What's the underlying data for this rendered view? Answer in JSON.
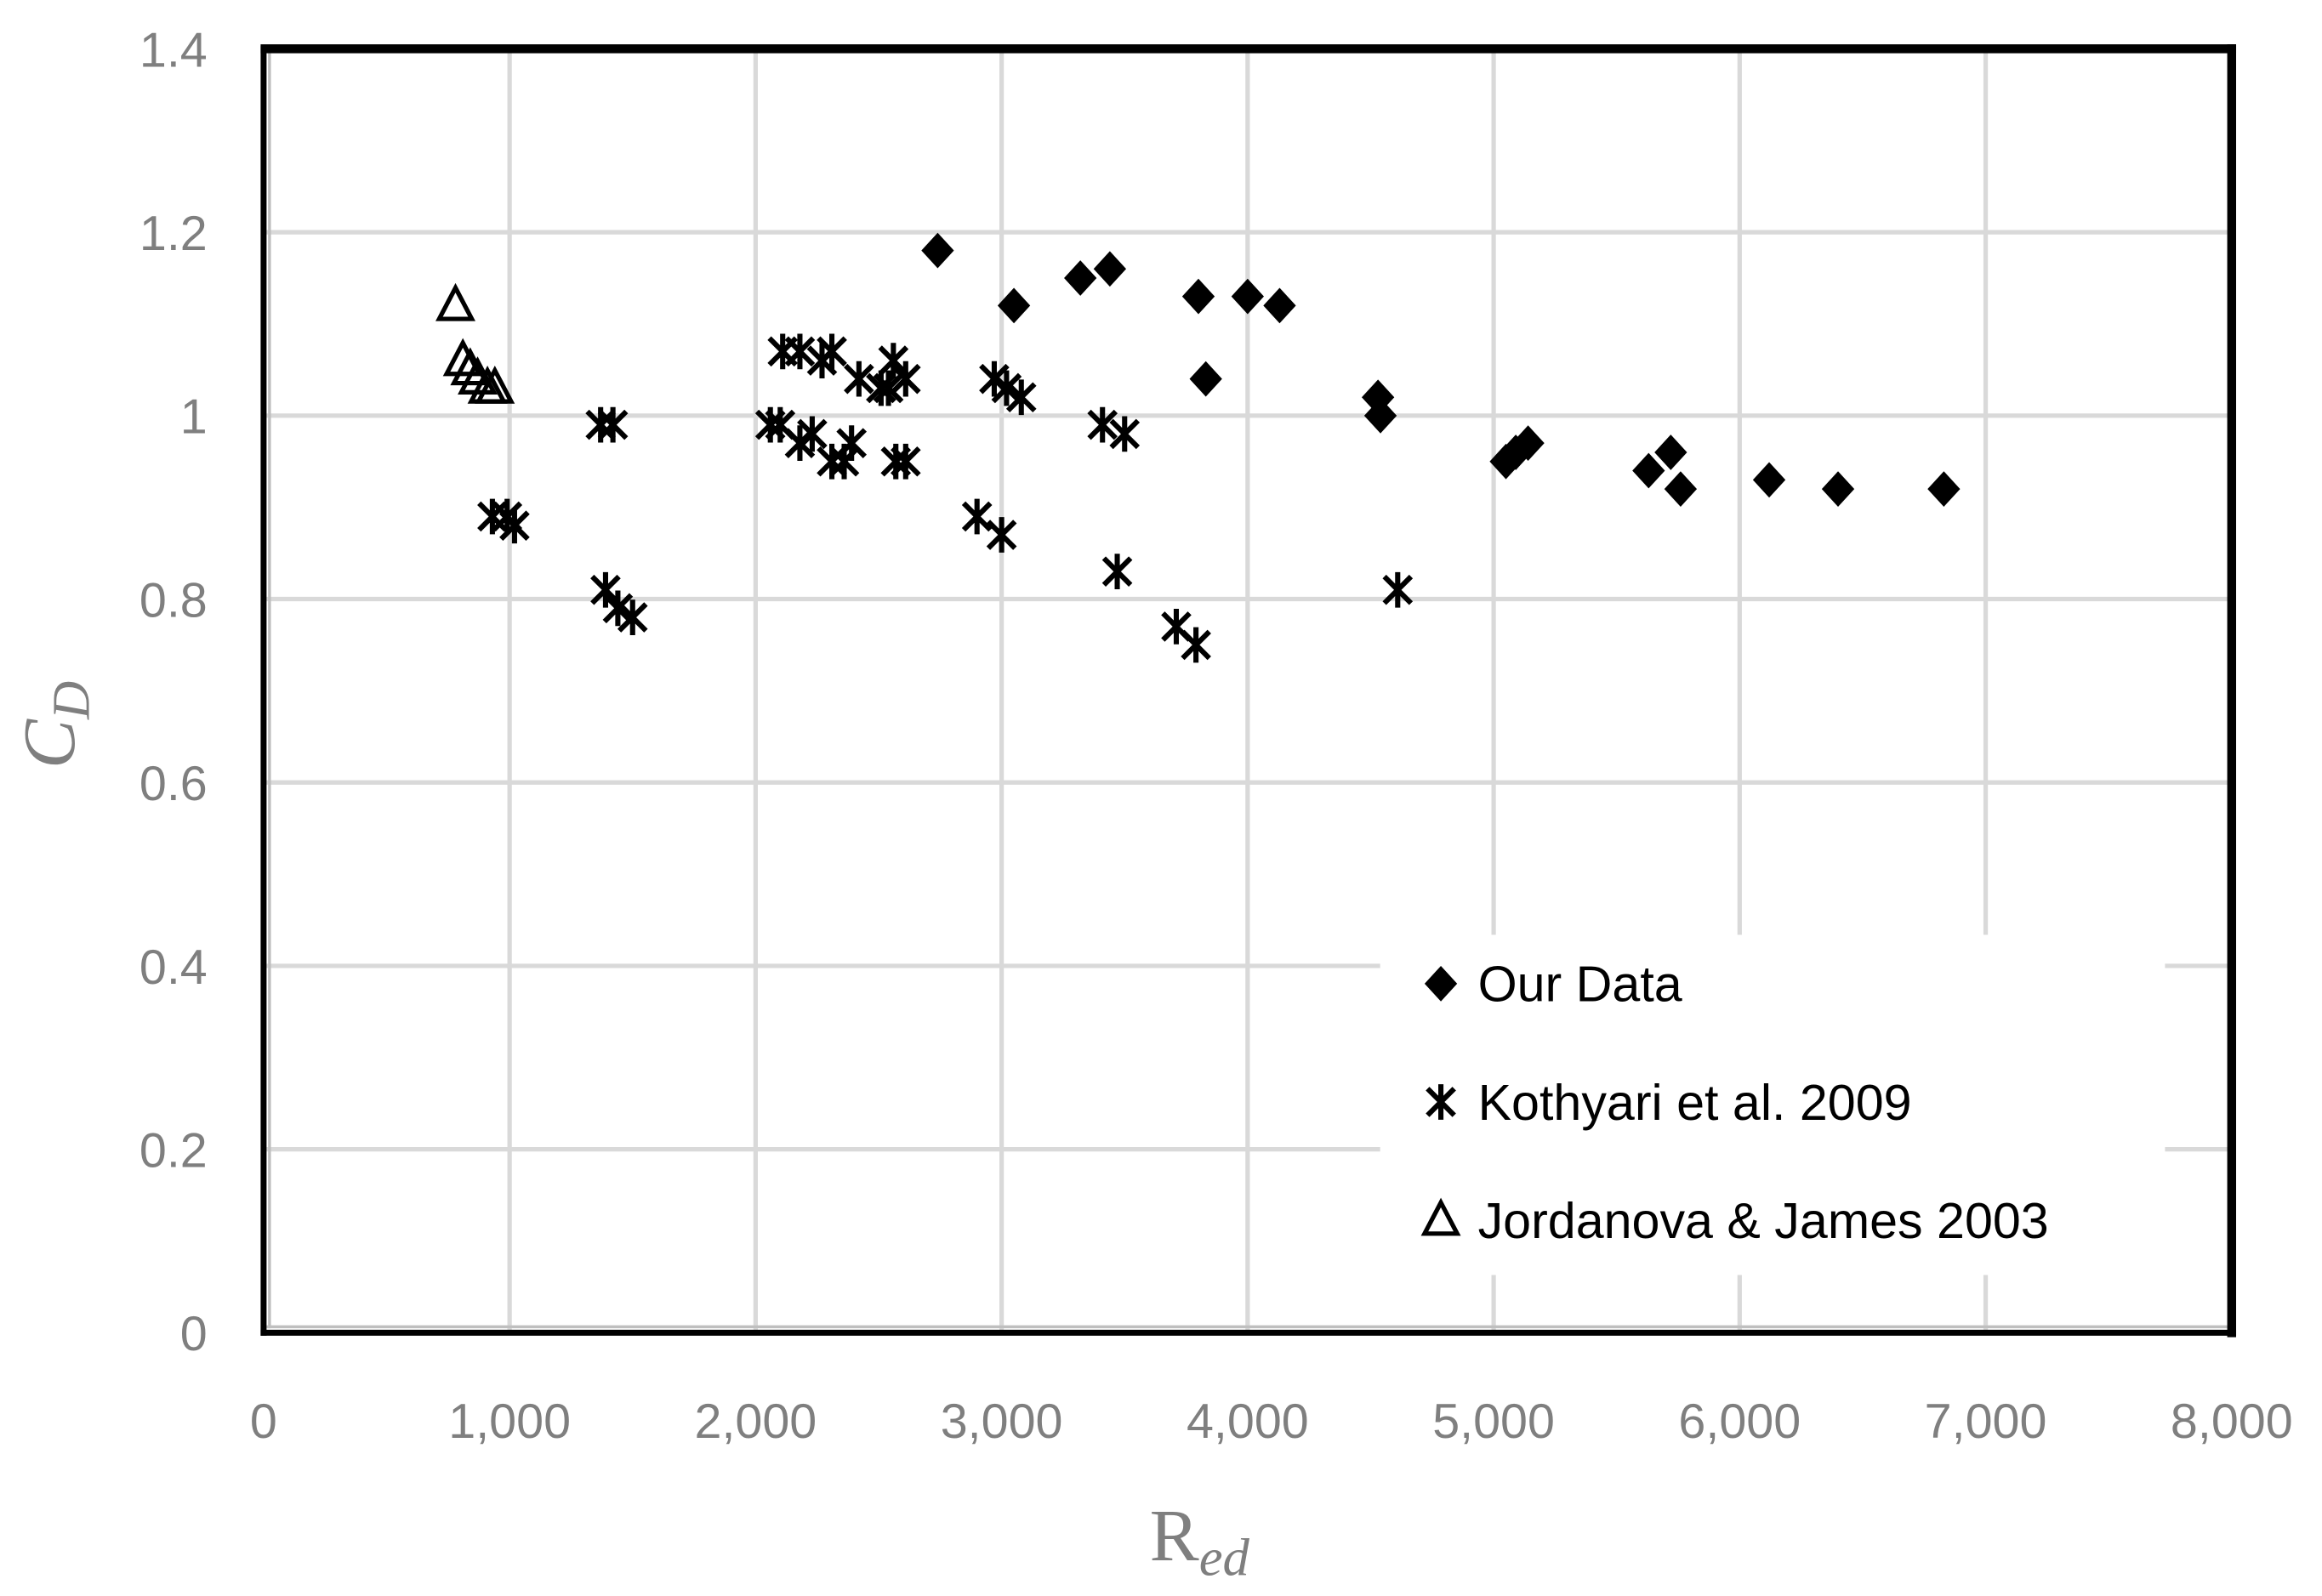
{
  "chart_data": {
    "type": "scatter",
    "xlabel": {
      "main": "R",
      "sub": "ed"
    },
    "ylabel": {
      "main": "C",
      "sub": "D"
    },
    "xlim": [
      0,
      8000
    ],
    "ylim": [
      0,
      1.4
    ],
    "xticks": [
      0,
      1000,
      2000,
      3000,
      4000,
      5000,
      6000,
      7000,
      8000
    ],
    "xticklabels": [
      "0",
      "1,000",
      "2,000",
      "3,000",
      "4,000",
      "5,000",
      "6,000",
      "7,000",
      "8,000"
    ],
    "yticks": [
      0,
      0.2,
      0.4,
      0.6,
      0.8,
      1,
      1.2,
      1.4
    ],
    "yticklabels": [
      "0",
      "0.2",
      "0.4",
      "0.6",
      "0.8",
      "1",
      "1.2",
      "1.4"
    ],
    "grid": true,
    "legend_position": "bottom-right",
    "series": [
      {
        "name": "Our Data",
        "marker": "diamond",
        "color": "#000000",
        "points": [
          [
            2740,
            1.18
          ],
          [
            3050,
            1.12
          ],
          [
            3320,
            1.15
          ],
          [
            3440,
            1.16
          ],
          [
            3800,
            1.13
          ],
          [
            4000,
            1.13
          ],
          [
            4130,
            1.12
          ],
          [
            3830,
            1.04
          ],
          [
            4530,
            1.02
          ],
          [
            4540,
            1.0
          ],
          [
            5050,
            0.95
          ],
          [
            5090,
            0.96
          ],
          [
            5140,
            0.97
          ],
          [
            5630,
            0.94
          ],
          [
            5720,
            0.96
          ],
          [
            5760,
            0.92
          ],
          [
            6120,
            0.93
          ],
          [
            6400,
            0.92
          ],
          [
            6830,
            0.92
          ]
        ]
      },
      {
        "name": "Kothyari et al. 2009",
        "marker": "asterisk",
        "color": "#000000",
        "points": [
          [
            930,
            0.89
          ],
          [
            990,
            0.89
          ],
          [
            1020,
            0.88
          ],
          [
            1370,
            0.99
          ],
          [
            1420,
            0.99
          ],
          [
            1390,
            0.81
          ],
          [
            1440,
            0.79
          ],
          [
            1500,
            0.78
          ],
          [
            2060,
            0.99
          ],
          [
            2100,
            0.99
          ],
          [
            2110,
            1.07
          ],
          [
            2180,
            1.07
          ],
          [
            2270,
            1.06
          ],
          [
            2310,
            1.07
          ],
          [
            2180,
            0.97
          ],
          [
            2230,
            0.98
          ],
          [
            2310,
            0.95
          ],
          [
            2360,
            0.95
          ],
          [
            2390,
            0.97
          ],
          [
            2420,
            1.04
          ],
          [
            2510,
            1.03
          ],
          [
            2560,
            1.06
          ],
          [
            2540,
            1.03
          ],
          [
            2610,
            1.04
          ],
          [
            2570,
            0.95
          ],
          [
            2610,
            0.95
          ],
          [
            2900,
            0.89
          ],
          [
            3000,
            0.87
          ],
          [
            2970,
            1.04
          ],
          [
            3020,
            1.03
          ],
          [
            3080,
            1.02
          ],
          [
            3410,
            0.99
          ],
          [
            3500,
            0.98
          ],
          [
            3470,
            0.83
          ],
          [
            3710,
            0.77
          ],
          [
            3790,
            0.75
          ],
          [
            4610,
            0.81
          ]
        ]
      },
      {
        "name": "Jordanova & James 2003",
        "marker": "triangle",
        "color": "#000000",
        "points": [
          [
            780,
            1.12
          ],
          [
            810,
            1.06
          ],
          [
            840,
            1.05
          ],
          [
            870,
            1.04
          ],
          [
            910,
            1.03
          ],
          [
            940,
            1.03
          ]
        ]
      }
    ]
  },
  "colors": {
    "tick_label": "#7f7f7f",
    "gridline": "#d9d9d9",
    "frame": "#000000",
    "legend_text": "#000000"
  }
}
